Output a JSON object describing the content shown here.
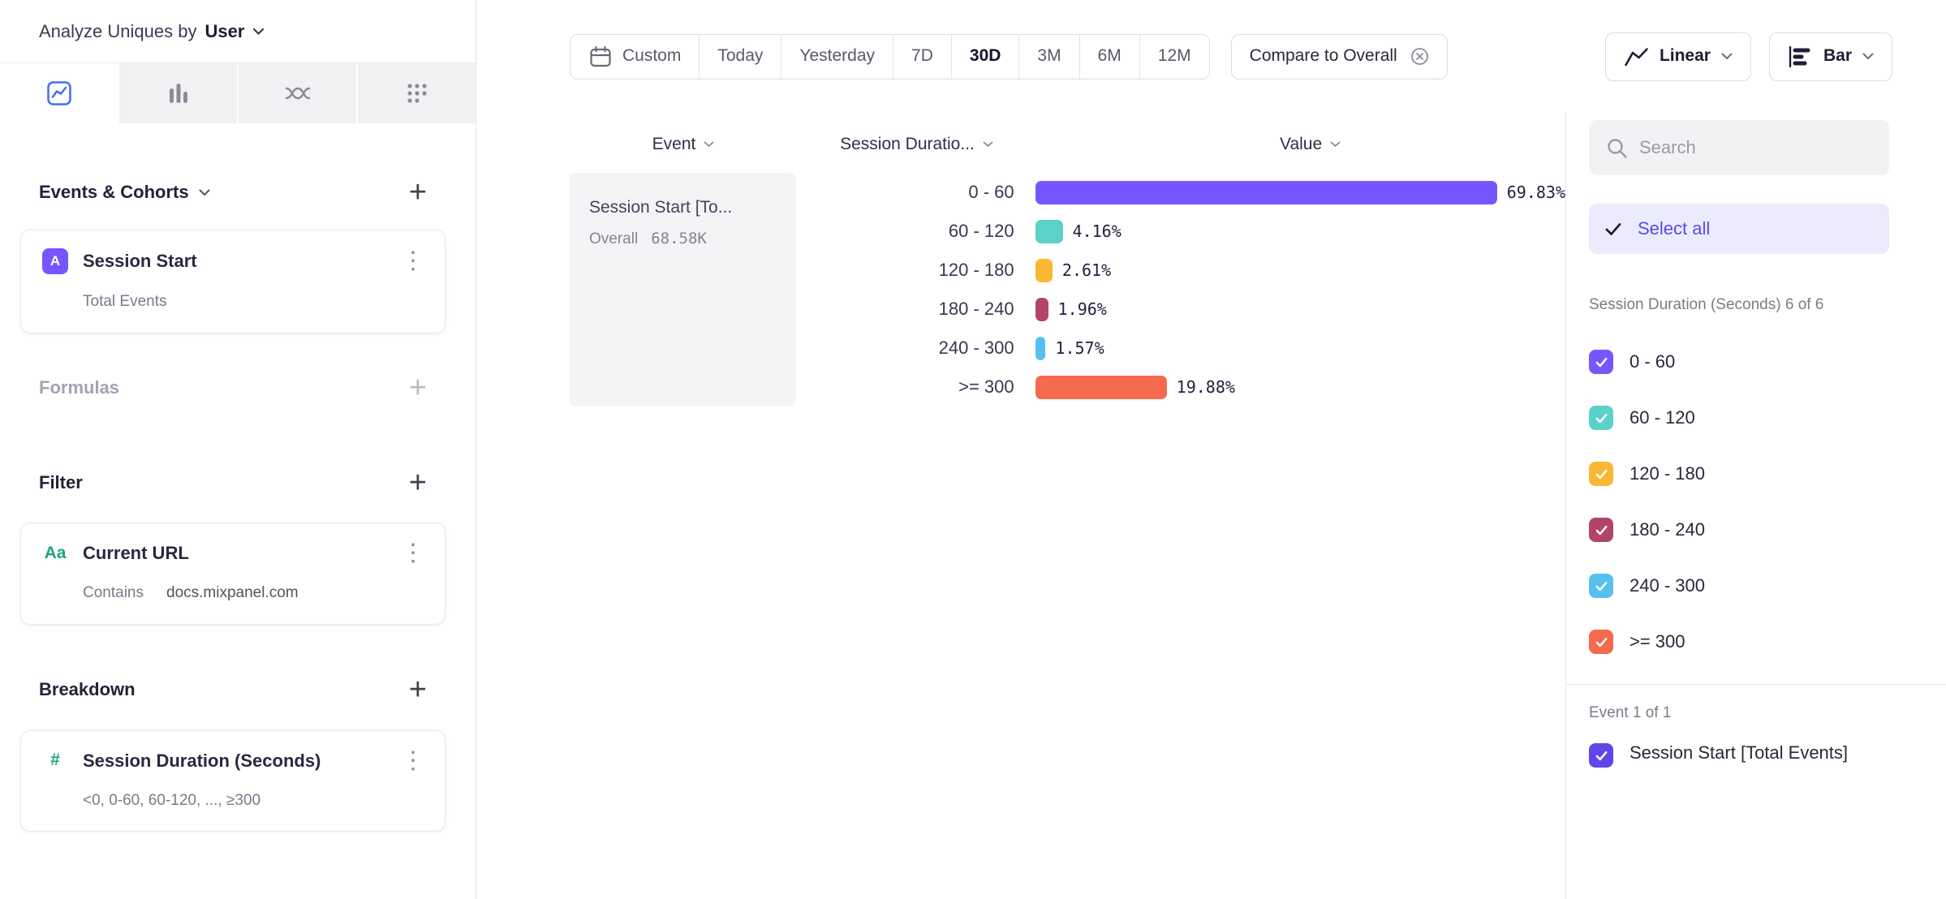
{
  "left_sidebar": {
    "analyze_label": "Analyze Uniques by",
    "analyze_value": "User",
    "tabs": [
      {
        "icon": "insights-line-chart-icon",
        "selected": true
      },
      {
        "icon": "bars-chart-icon",
        "selected": false
      },
      {
        "icon": "flows-icon",
        "selected": false
      },
      {
        "icon": "retention-grid-icon",
        "selected": false
      }
    ],
    "events_section": {
      "title": "Events & Cohorts",
      "card": {
        "badge": "A",
        "title": "Session Start",
        "subtitle": "Total Events"
      }
    },
    "formulas_section": {
      "title": "Formulas"
    },
    "filter_section": {
      "title": "Filter",
      "card": {
        "badge": "Aa",
        "title": "Current URL",
        "operator": "Contains",
        "value": "docs.mixpanel.com"
      }
    },
    "breakdown_section": {
      "title": "Breakdown",
      "card": {
        "badge": "#",
        "title": "Session Duration (Seconds)",
        "subtitle": "<0, 0-60, 60-120, ..., ≥300"
      }
    }
  },
  "toolbar": {
    "date_segments": [
      "Custom",
      "Today",
      "Yesterday",
      "7D",
      "30D",
      "3M",
      "6M",
      "12M"
    ],
    "selected_segment": "30D",
    "compare_label": "Compare to Overall",
    "chart_type_label": "Linear",
    "chart_style_label": "Bar"
  },
  "chart": {
    "columns": {
      "event": "Event",
      "breakdown": "Session Duratio...",
      "value": "Value"
    },
    "event_cell": {
      "title": "Session Start [To...",
      "overall_label": "Overall",
      "overall_value": "68.58K"
    }
  },
  "chart_data": {
    "type": "bar",
    "orientation": "horizontal",
    "series_name": "Session Start [Total Events]",
    "overall_total": "68.58K",
    "categories": [
      "0 - 60",
      "60 - 120",
      "120 - 180",
      "180 - 240",
      "240 - 300",
      ">= 300"
    ],
    "values": [
      69.83,
      4.16,
      2.61,
      1.96,
      1.57,
      19.88
    ],
    "value_labels": [
      "69.83%",
      "4.16%",
      "2.61%",
      "1.96%",
      "1.57%",
      "19.88%"
    ],
    "colors": [
      "#7856ff",
      "#5ad1c9",
      "#f8b833",
      "#b2436a",
      "#57c0ee",
      "#f56a4d"
    ],
    "xlim": [
      0,
      100
    ],
    "unit": "%"
  },
  "right_panel": {
    "search_placeholder": "Search",
    "select_all_label": "Select all",
    "group_label": "Session Duration (Seconds) 6 of 6",
    "items": [
      {
        "label": "0 - 60",
        "color": "#7856ff",
        "checked": true
      },
      {
        "label": "60 - 120",
        "color": "#5ad1c9",
        "checked": true
      },
      {
        "label": "120 - 180",
        "color": "#f8b833",
        "checked": true
      },
      {
        "label": "180 - 240",
        "color": "#b2436a",
        "checked": true
      },
      {
        "label": "240 - 300",
        "color": "#57c0ee",
        "checked": true
      },
      {
        "label": ">= 300",
        "color": "#f56a4d",
        "checked": true
      }
    ],
    "event_group_label": "Event 1 of 1",
    "event_item": {
      "label": "Session Start [Total Events]",
      "color": "#6245e8",
      "checked": true
    }
  },
  "icons": [
    "insights-line-chart-icon",
    "bars-chart-icon",
    "flows-icon",
    "retention-grid-icon",
    "plus-icon",
    "kebab-icon",
    "chevron-down-icon",
    "calendar-icon",
    "dismiss-circle-icon",
    "linear-scale-icon",
    "bar-style-icon",
    "search-icon",
    "checkmark-icon"
  ]
}
